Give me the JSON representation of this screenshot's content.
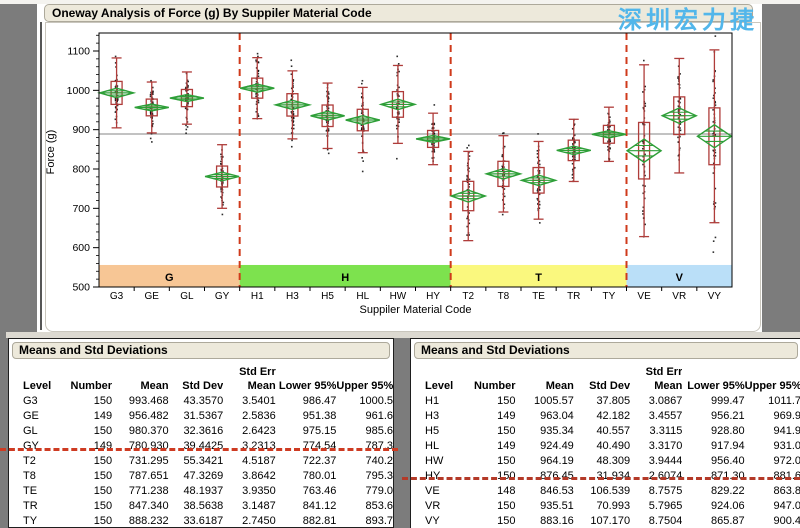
{
  "watermark": {
    "text": "深圳宏力捷",
    "color": "#52B6EA"
  },
  "oneway": {
    "title": "Oneway Analysis of Force (g) By Suppiler Material Code"
  },
  "chart_data": {
    "type": "box",
    "title": "Oneway Analysis of Force (g) By Suppiler Material Code",
    "xlabel": "Suppiler Material Code",
    "ylabel": "Force (g)",
    "ylim": [
      500,
      1150
    ],
    "yticks": [
      500,
      600,
      700,
      800,
      900,
      1000,
      1100
    ],
    "y_minor_step": 20,
    "grid": false,
    "legend_position": "none",
    "grand_mean": 889,
    "groups": [
      {
        "label": "G",
        "band_color": "#F7C695",
        "count": 4
      },
      {
        "label": "H",
        "band_color": "#7DE24E",
        "count": 6
      },
      {
        "label": "T",
        "band_color": "#FAF87E",
        "count": 5
      },
      {
        "label": "V",
        "band_color": "#BADFF8",
        "count": 3
      }
    ],
    "series": [
      {
        "level": "G3",
        "n": 150,
        "mean": 993.468,
        "std_dev": 43.357,
        "std_err": 3.5401,
        "lower95": 986.47,
        "upper95": 1000.5
      },
      {
        "level": "GE",
        "n": 149,
        "mean": 956.482,
        "std_dev": 31.5367,
        "std_err": 2.5836,
        "lower95": 951.38,
        "upper95": 961.6
      },
      {
        "level": "GL",
        "n": 150,
        "mean": 980.37,
        "std_dev": 32.3616,
        "std_err": 2.6423,
        "lower95": 975.15,
        "upper95": 985.6
      },
      {
        "level": "GY",
        "n": 149,
        "mean": 780.93,
        "std_dev": 39.4425,
        "std_err": 3.2313,
        "lower95": 774.54,
        "upper95": 787.3
      },
      {
        "level": "H1",
        "n": 150,
        "mean": 1005.57,
        "std_dev": 37.805,
        "std_err": 3.0867,
        "lower95": 999.47,
        "upper95": 1011.7
      },
      {
        "level": "H3",
        "n": 149,
        "mean": 963.04,
        "std_dev": 42.182,
        "std_err": 3.4557,
        "lower95": 956.21,
        "upper95": 969.9
      },
      {
        "level": "H5",
        "n": 150,
        "mean": 935.34,
        "std_dev": 40.557,
        "std_err": 3.3115,
        "lower95": 928.8,
        "upper95": 941.9
      },
      {
        "level": "HL",
        "n": 149,
        "mean": 924.49,
        "std_dev": 40.49,
        "std_err": 3.317,
        "lower95": 917.94,
        "upper95": 931.0
      },
      {
        "level": "HW",
        "n": 150,
        "mean": 964.19,
        "std_dev": 48.309,
        "std_err": 3.9444,
        "lower95": 956.4,
        "upper95": 972.0
      },
      {
        "level": "HY",
        "n": 150,
        "mean": 876.45,
        "std_dev": 31.934,
        "std_err": 2.6074,
        "lower95": 871.3,
        "upper95": 881.6
      },
      {
        "level": "T2",
        "n": 150,
        "mean": 731.295,
        "std_dev": 55.3421,
        "std_err": 4.5187,
        "lower95": 722.37,
        "upper95": 740.2
      },
      {
        "level": "T8",
        "n": 150,
        "mean": 787.651,
        "std_dev": 47.3269,
        "std_err": 3.8642,
        "lower95": 780.01,
        "upper95": 795.3
      },
      {
        "level": "TE",
        "n": 150,
        "mean": 771.238,
        "std_dev": 48.1937,
        "std_err": 3.935,
        "lower95": 763.46,
        "upper95": 779.0
      },
      {
        "level": "TR",
        "n": 150,
        "mean": 847.34,
        "std_dev": 38.5638,
        "std_err": 3.1487,
        "lower95": 841.12,
        "upper95": 853.6
      },
      {
        "level": "TY",
        "n": 150,
        "mean": 888.232,
        "std_dev": 33.6187,
        "std_err": 2.745,
        "lower95": 882.81,
        "upper95": 893.7
      },
      {
        "level": "VE",
        "n": 148,
        "mean": 846.53,
        "std_dev": 106.539,
        "std_err": 8.7575,
        "lower95": 829.22,
        "upper95": 863.8
      },
      {
        "level": "VR",
        "n": 150,
        "mean": 935.51,
        "std_dev": 70.993,
        "std_err": 5.7965,
        "lower95": 924.06,
        "upper95": 947.0
      },
      {
        "level": "VY",
        "n": 150,
        "mean": 883.16,
        "std_dev": 107.17,
        "std_err": 8.7504,
        "lower95": 865.87,
        "upper95": 900.4
      }
    ],
    "colors": {
      "box": "#AF3C3A",
      "diamond": "#2E9F38",
      "separator": "#CF3A1B",
      "grand_mean_line": "#848484",
      "points": "#111111"
    }
  },
  "tables": [
    {
      "title": "Means and Std Deviations",
      "header_top": [
        "",
        "",
        "",
        "",
        "Std Err",
        "",
        ""
      ],
      "header": [
        "Level",
        "Number",
        "Mean",
        "Std Dev",
        "Mean",
        "Lower 95%",
        "Upper 95%"
      ],
      "rows": [
        [
          "G3",
          "150",
          "993.468",
          "43.3570",
          "3.5401",
          "986.47",
          "1000.5"
        ],
        [
          "GE",
          "149",
          "956.482",
          "31.5367",
          "2.5836",
          "951.38",
          "961.6"
        ],
        [
          "GL",
          "150",
          "980.370",
          "32.3616",
          "2.6423",
          "975.15",
          "985.6"
        ],
        [
          "GY",
          "149",
          "780.930",
          "39.4425",
          "3.2313",
          "774.54",
          "787.3"
        ],
        [
          "T2",
          "150",
          "731.295",
          "55.3421",
          "4.5187",
          "722.37",
          "740.2"
        ],
        [
          "T8",
          "150",
          "787.651",
          "47.3269",
          "3.8642",
          "780.01",
          "795.3"
        ],
        [
          "TE",
          "150",
          "771.238",
          "48.1937",
          "3.9350",
          "763.46",
          "779.0"
        ],
        [
          "TR",
          "150",
          "847.340",
          "38.5638",
          "3.1487",
          "841.12",
          "853.6"
        ],
        [
          "TY",
          "150",
          "888.232",
          "33.6187",
          "2.7450",
          "882.81",
          "893.7"
        ]
      ]
    },
    {
      "title": "Means and Std Deviations",
      "header_top": [
        "",
        "",
        "",
        "",
        "Std Err",
        "",
        ""
      ],
      "header": [
        "Level",
        "Number",
        "Mean",
        "Std Dev",
        "Mean",
        "Lower 95%",
        "Upper 95%"
      ],
      "rows": [
        [
          "H1",
          "150",
          "1005.57",
          "37.805",
          "3.0867",
          "999.47",
          "1011.7"
        ],
        [
          "H3",
          "149",
          "963.04",
          "42.182",
          "3.4557",
          "956.21",
          "969.9"
        ],
        [
          "H5",
          "150",
          "935.34",
          "40.557",
          "3.3115",
          "928.80",
          "941.9"
        ],
        [
          "HL",
          "149",
          "924.49",
          "40.490",
          "3.3170",
          "917.94",
          "931.0"
        ],
        [
          "HW",
          "150",
          "964.19",
          "48.309",
          "3.9444",
          "956.40",
          "972.0"
        ],
        [
          "HY",
          "150",
          "876.45",
          "31.934",
          "2.6074",
          "871.30",
          "881.6"
        ],
        [
          "VE",
          "148",
          "846.53",
          "106.539",
          "8.7575",
          "829.22",
          "863.8"
        ],
        [
          "VR",
          "150",
          "935.51",
          "70.993",
          "5.7965",
          "924.06",
          "947.0"
        ],
        [
          "VY",
          "150",
          "883.16",
          "107.170",
          "8.7504",
          "865.87",
          "900.4"
        ]
      ]
    }
  ],
  "annotations": {
    "left_line": "red-dashed-separator-between-G-and-T-rows",
    "right_line": "red-dashed-separator-between-H-and-V-rows"
  }
}
